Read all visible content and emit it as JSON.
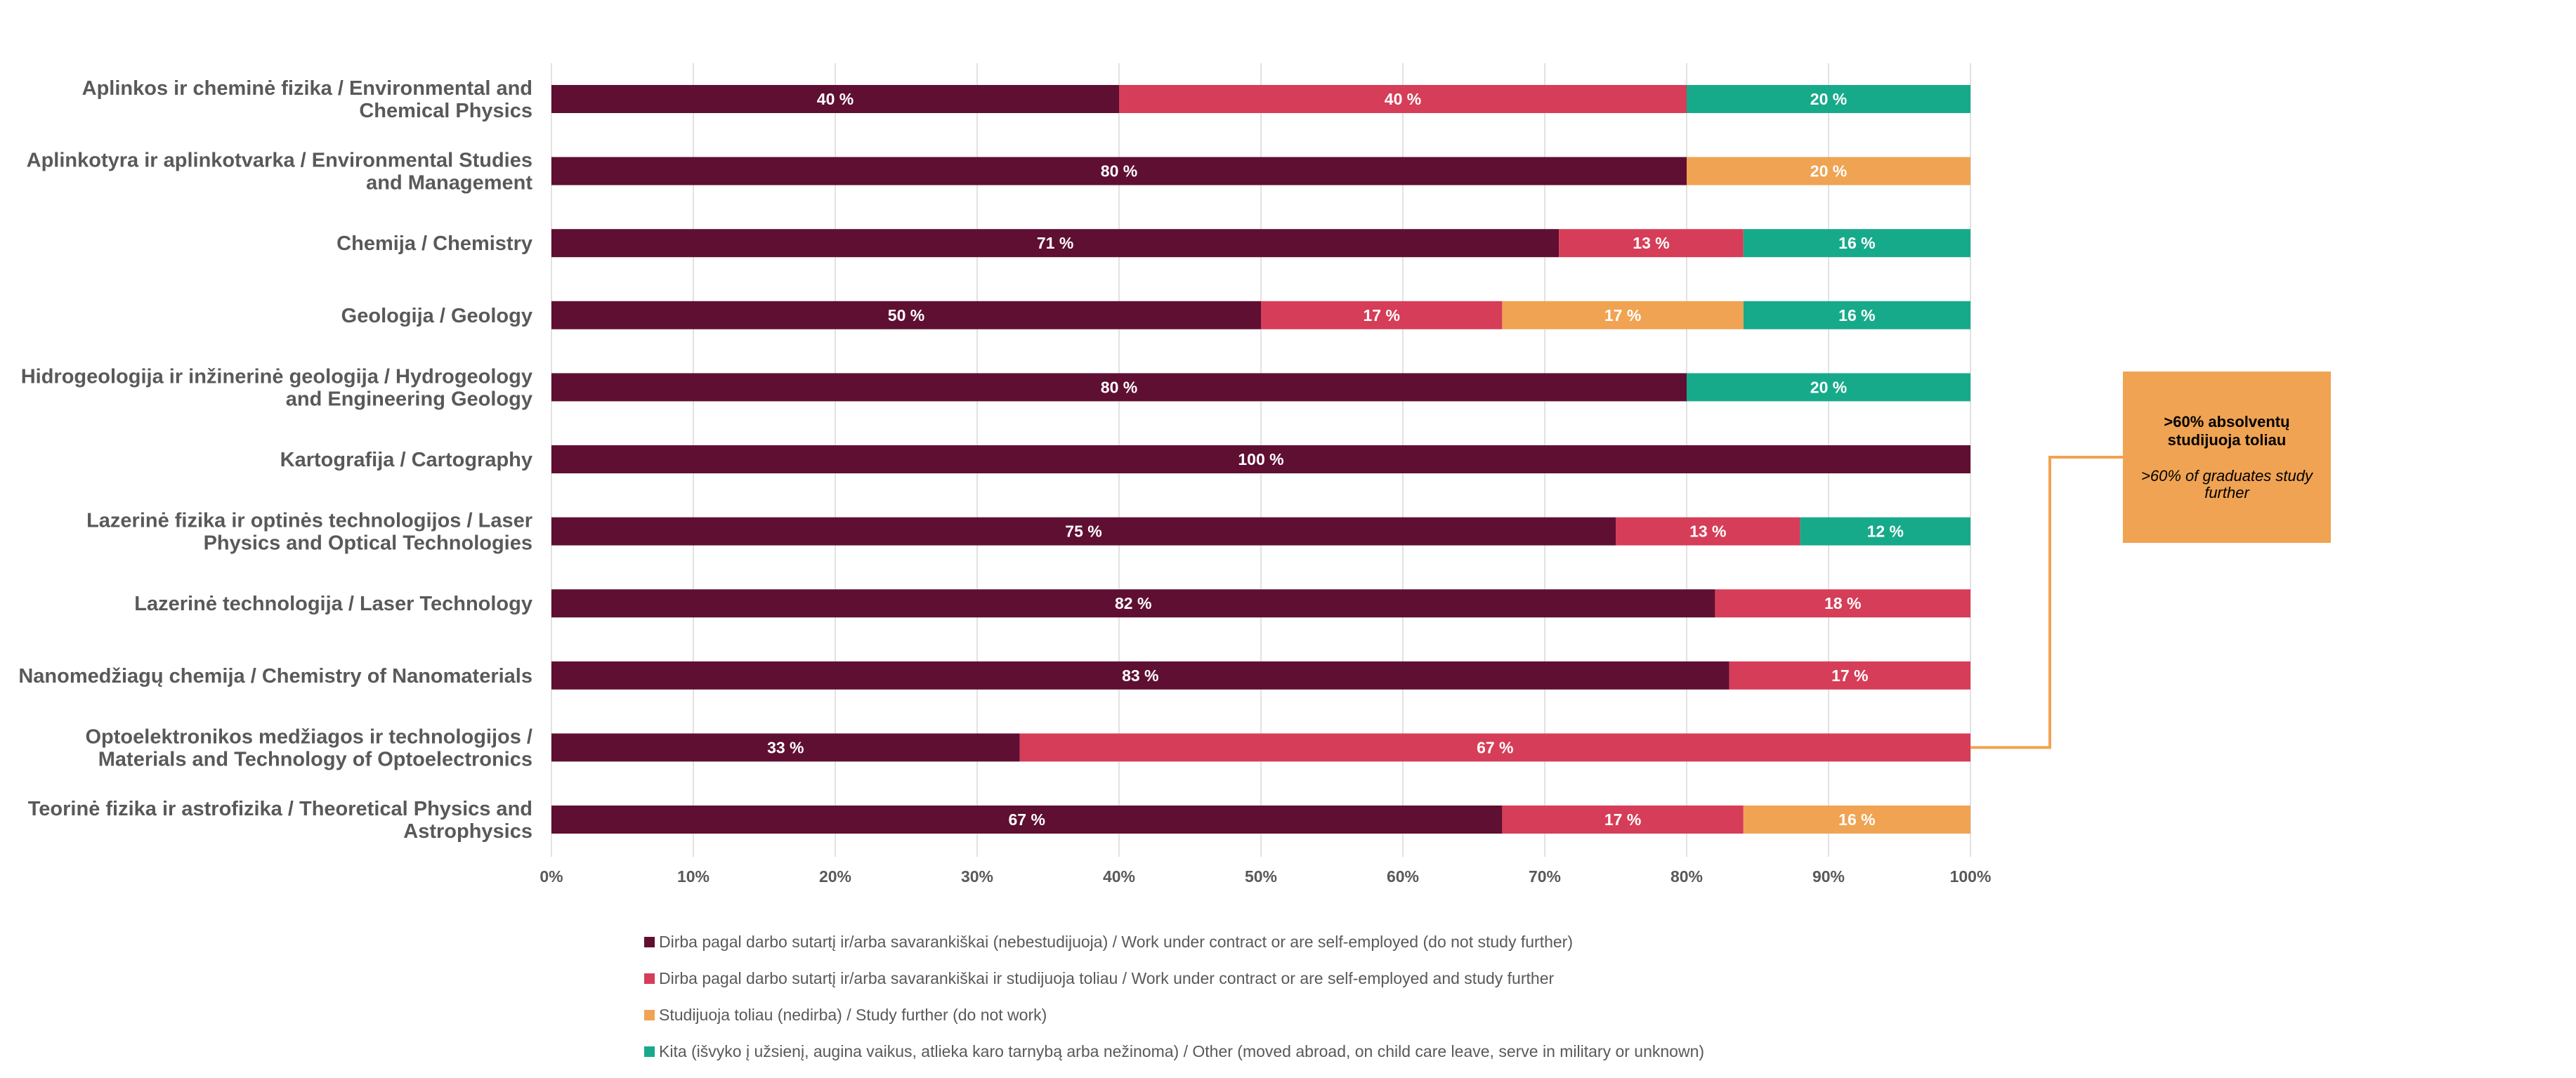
{
  "chart_data": {
    "type": "bar",
    "orientation": "horizontal",
    "stacked": true,
    "percent": true,
    "categories": [
      [
        "Aplinkos ir cheminė fizika / Environmental and",
        "Chemical Physics"
      ],
      [
        "Aplinkotyra ir aplinkotvarka / Environmental Studies",
        "and Management"
      ],
      [
        "Chemija / Chemistry"
      ],
      [
        "Geologija / Geology"
      ],
      [
        "Hidrogeologija ir inžinerinė geologija / Hydrogeology",
        "and Engineering Geology"
      ],
      [
        "Kartografija / Cartography"
      ],
      [
        "Lazerinė fizika ir optinės technologijos / Laser",
        "Physics and Optical Technologies"
      ],
      [
        "Lazerinė technologija / Laser Technology"
      ],
      [
        "Nanomedžiagų chemija / Chemistry of Nanomaterials"
      ],
      [
        "Optoelektronikos medžiagos ir technologijos /",
        "Materials and Technology of Optoelectronics"
      ],
      [
        "Teorinė fizika ir astrofizika / Theoretical Physics and",
        "Astrophysics"
      ]
    ],
    "series": [
      {
        "name": "Dirba pagal darbo sutartį ir/arba savarankiškai (nebestudijuoja) / Work under contract or are self-employed (do not study further)",
        "color": "#5F0F32",
        "values": [
          40,
          80,
          71,
          50,
          80,
          100,
          75,
          82,
          83,
          33,
          67
        ]
      },
      {
        "name": "Dirba pagal darbo sutartį ir/arba savarankiškai  ir studijuoja toliau / Work under contract or are self-employed and study further",
        "color": "#D63D58",
        "values": [
          40,
          0,
          13,
          17,
          0,
          0,
          13,
          18,
          17,
          67,
          17
        ]
      },
      {
        "name": "Studijuoja toliau (nedirba) / Study further (do not work)",
        "color": "#F0A352",
        "values": [
          0,
          20,
          0,
          17,
          0,
          0,
          0,
          0,
          0,
          0,
          16
        ]
      },
      {
        "name": "Kita (išvyko į užsienį, augina vaikus, atlieka karo tarnybą arba nežinoma) / Other (moved abroad, on child care leave, serve in military or unknown)",
        "color": "#17AA8A",
        "values": [
          20,
          0,
          16,
          16,
          20,
          0,
          12,
          0,
          0,
          0,
          0
        ]
      }
    ],
    "value_label_suffix": " %",
    "x_ticks": [
      "0%",
      "10%",
      "20%",
      "30%",
      "40%",
      "50%",
      "60%",
      "70%",
      "80%",
      "90%",
      "100%"
    ],
    "xlim": [
      0,
      100
    ],
    "grid": true,
    "legend_position": "bottom",
    "callout": {
      "title": ">60% absolventų studijuoja toliau",
      "subtitle": ">60% of graduates study further",
      "color": "#F0A352",
      "points_to_category_index": 9
    }
  }
}
